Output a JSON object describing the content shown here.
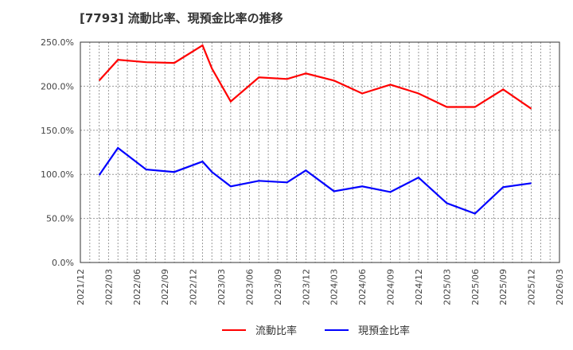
{
  "title": "[7793]  流動比率、現預金比率の推移",
  "chart_data": {
    "type": "line",
    "title": "[7793]  流動比率、現預金比率の推移",
    "xlabel": "",
    "ylabel": "",
    "ylim": [
      0,
      250
    ],
    "yticks": [
      "0.0%",
      "50.0%",
      "100.0%",
      "150.0%",
      "200.0%",
      "250.0%"
    ],
    "xticks": [
      "2021/12",
      "2022/03",
      "2022/06",
      "2022/09",
      "2022/12",
      "2023/03",
      "2023/06",
      "2023/09",
      "2023/12",
      "2024/03",
      "2024/06",
      "2024/09",
      "2024/12",
      "2025/03",
      "2025/06",
      "2025/09",
      "2025/12",
      "2026/03"
    ],
    "x": [
      "2022/02",
      "2022/04",
      "2022/07",
      "2022/10",
      "2023/01",
      "2023/02",
      "2023/04",
      "2023/07",
      "2023/10",
      "2023/12",
      "2024/03",
      "2024/06",
      "2024/09",
      "2024/12",
      "2025/03",
      "2025/06",
      "2025/09",
      "2025/12"
    ],
    "x_month_index": [
      2,
      4,
      7,
      10,
      13,
      14,
      16,
      19,
      22,
      24,
      27,
      30,
      33,
      36,
      39,
      42,
      45,
      48
    ],
    "grid": true,
    "legend_position": "bottom",
    "series": [
      {
        "name": "流動比率",
        "color": "#ff0000",
        "values": [
          206.4,
          230.0,
          227.3,
          226.4,
          246.4,
          220.0,
          182.7,
          210.0,
          208.2,
          214.5,
          206.4,
          191.8,
          201.8,
          191.8,
          176.4,
          176.4,
          196.4,
          174.5
        ]
      },
      {
        "name": "現預金比率",
        "color": "#0000ff",
        "values": [
          99.1,
          130.0,
          105.5,
          102.7,
          114.5,
          102.7,
          86.4,
          92.7,
          90.9,
          104.5,
          80.9,
          86.4,
          80.0,
          96.4,
          67.3,
          55.5,
          85.5,
          90.0
        ]
      }
    ]
  },
  "legend": {
    "items": [
      {
        "label": "流動比率",
        "color": "#ff0000"
      },
      {
        "label": "現預金比率",
        "color": "#0000ff"
      }
    ]
  }
}
